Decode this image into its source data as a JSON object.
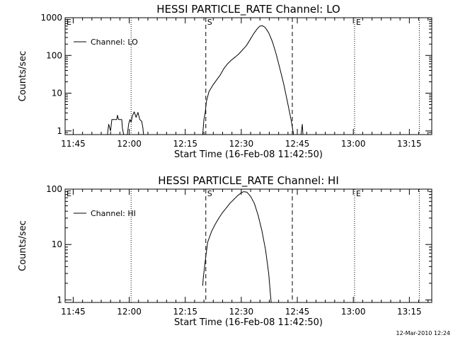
{
  "footer": {
    "timestamp": "12-Mar-2010 12:24"
  },
  "chart_data": [
    {
      "type": "line",
      "title": "HESSI PARTICLE_RATE Channel: LO",
      "xlabel": "Start Time (16-Feb-08 11:42:50)",
      "ylabel": "Counts/sec",
      "y_scale": "log",
      "xlim": [
        "11:42:50",
        "13:21:00"
      ],
      "ylim": [
        0.8,
        1000
      ],
      "x_ticks": [
        "11:45",
        "12:00",
        "12:15",
        "12:30",
        "12:45",
        "13:00",
        "13:15"
      ],
      "y_ticks": [
        "1",
        "10",
        "100",
        "1000"
      ],
      "legend": {
        "position": "top-left",
        "entries": [
          "Channel: LO"
        ]
      },
      "markers": [
        {
          "label": "E",
          "time": "11:42:50",
          "style": "dotted"
        },
        {
          "label": "",
          "time": "12:00:30",
          "style": "dotted"
        },
        {
          "label": "S",
          "time": "12:20:30",
          "style": "dashed"
        },
        {
          "label": "",
          "time": "12:43:40",
          "style": "dashed"
        },
        {
          "label": "E",
          "time": "13:00:20",
          "style": "dotted"
        },
        {
          "label": "",
          "time": "13:17:40",
          "style": "dotted"
        }
      ],
      "series": [
        {
          "name": "Channel: LO",
          "segments": [
            [
              [
                "11:54:10",
                0.8
              ],
              [
                "11:54:30",
                1.5
              ],
              [
                "11:55:00",
                1
              ],
              [
                "11:55:20",
                2
              ],
              [
                "11:56:40",
                2
              ],
              [
                "11:56:50",
                2.6
              ],
              [
                "11:57:10",
                2
              ],
              [
                "11:58:00",
                2
              ],
              [
                "11:58:10",
                1.2
              ],
              [
                "11:58:30",
                0.8
              ]
            ],
            [
              [
                "11:59:30",
                0.8
              ],
              [
                "11:59:50",
                1.5
              ],
              [
                "12:00:10",
                2
              ],
              [
                "12:00:30",
                1.7
              ],
              [
                "12:00:50",
                2.5
              ],
              [
                "12:01:20",
                3.2
              ],
              [
                "12:01:50",
                2.3
              ],
              [
                "12:02:20",
                3.1
              ],
              [
                "12:02:50",
                2
              ],
              [
                "12:03:20",
                1.8
              ],
              [
                "12:03:40",
                1.2
              ],
              [
                "12:03:50",
                0.8
              ]
            ],
            [
              [
                "12:19:40",
                0.8
              ],
              [
                "12:20:00",
                2
              ],
              [
                "12:20:20",
                3
              ],
              [
                "12:20:40",
                6
              ],
              [
                "12:21:20",
                11
              ],
              [
                "12:22:20",
                16
              ],
              [
                "12:23:20",
                22
              ],
              [
                "12:24:20",
                30
              ],
              [
                "12:25:20",
                45
              ],
              [
                "12:26:20",
                60
              ],
              [
                "12:27:20",
                75
              ],
              [
                "12:28:20",
                90
              ],
              [
                "12:29:20",
                110
              ],
              [
                "12:30:20",
                140
              ],
              [
                "12:31:20",
                180
              ],
              [
                "12:32:20",
                260
              ],
              [
                "12:33:20",
                380
              ],
              [
                "12:34:20",
                520
              ],
              [
                "12:35:00",
                600
              ],
              [
                "12:35:40",
                610
              ],
              [
                "12:36:20",
                560
              ],
              [
                "12:37:20",
                400
              ],
              [
                "12:38:20",
                230
              ],
              [
                "12:39:20",
                110
              ],
              [
                "12:40:20",
                45
              ],
              [
                "12:41:20",
                18
              ],
              [
                "12:42:20",
                6
              ],
              [
                "12:43:20",
                2
              ],
              [
                "12:43:50",
                1
              ],
              [
                "12:44:00",
                0.8
              ]
            ],
            [
              [
                "12:46:00",
                0.8
              ],
              [
                "12:46:20",
                1.5
              ],
              [
                "12:46:30",
                0.8
              ]
            ]
          ]
        }
      ]
    },
    {
      "type": "line",
      "title": "HESSI PARTICLE_RATE Channel: HI",
      "xlabel": "Start Time (16-Feb-08 11:42:50)",
      "ylabel": "Counts/sec",
      "y_scale": "log",
      "xlim": [
        "11:42:50",
        "13:21:00"
      ],
      "ylim": [
        0.9,
        100
      ],
      "x_ticks": [
        "11:45",
        "12:00",
        "12:15",
        "12:30",
        "12:45",
        "13:00",
        "13:15"
      ],
      "y_ticks": [
        "1",
        "10",
        "100"
      ],
      "legend": {
        "position": "top-left",
        "entries": [
          "Channel: HI"
        ]
      },
      "markers": [
        {
          "label": "E",
          "time": "11:42:50",
          "style": "dotted"
        },
        {
          "label": "",
          "time": "12:00:30",
          "style": "dotted"
        },
        {
          "label": "S",
          "time": "12:20:30",
          "style": "dashed"
        },
        {
          "label": "",
          "time": "12:43:40",
          "style": "dashed"
        },
        {
          "label": "E",
          "time": "13:00:20",
          "style": "dotted"
        },
        {
          "label": "",
          "time": "13:17:40",
          "style": "dotted"
        }
      ],
      "series": [
        {
          "name": "Channel: HI",
          "segments": [
            [
              [
                "12:19:40",
                1.8
              ],
              [
                "12:19:50",
                2.5
              ],
              [
                "12:20:20",
                5
              ],
              [
                "12:21:00",
                11
              ],
              [
                "12:22:00",
                17
              ],
              [
                "12:23:00",
                23
              ],
              [
                "12:24:00",
                30
              ],
              [
                "12:25:00",
                38
              ],
              [
                "12:26:00",
                46
              ],
              [
                "12:27:00",
                56
              ],
              [
                "12:28:00",
                65
              ],
              [
                "12:29:00",
                76
              ],
              [
                "12:30:00",
                86
              ],
              [
                "12:30:40",
                90
              ],
              [
                "12:31:30",
                88
              ],
              [
                "12:32:30",
                74
              ],
              [
                "12:33:30",
                55
              ],
              [
                "12:34:30",
                34
              ],
              [
                "12:35:30",
                18
              ],
              [
                "12:36:30",
                8
              ],
              [
                "12:37:20",
                3
              ],
              [
                "12:37:50",
                1.2
              ],
              [
                "12:38:00",
                0.9
              ]
            ]
          ]
        }
      ]
    }
  ]
}
